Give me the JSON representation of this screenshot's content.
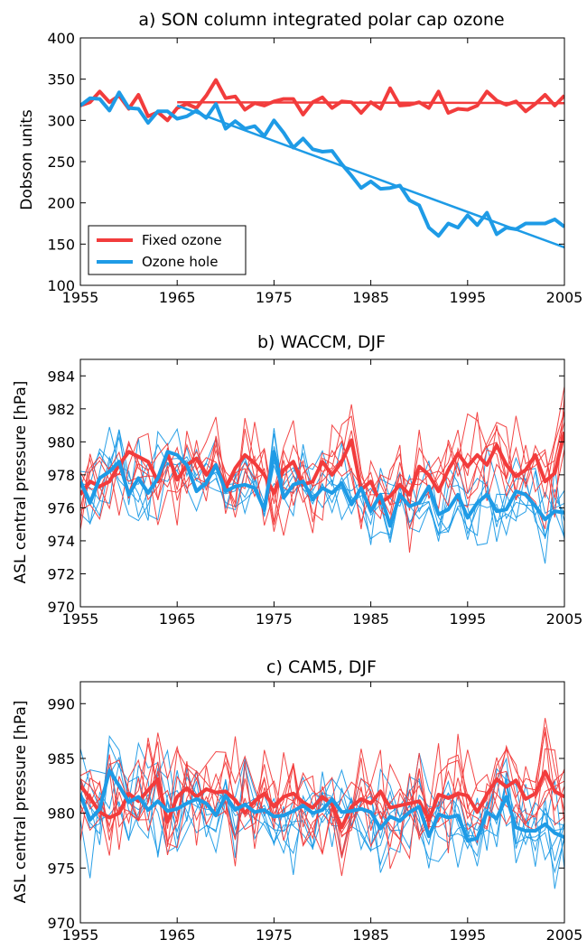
{
  "figure": {
    "panels": [
      {
        "title": "a) SON column integrated polar cap ozone",
        "ylabel": "Dobson units"
      },
      {
        "title": "b) WACCM, DJF",
        "ylabel": "ASL central pressure [hPa]"
      },
      {
        "title": "c) CAM5, DJF",
        "ylabel": "ASL central pressure [hPa]"
      }
    ]
  },
  "colors": {
    "fixed": "#f23c3c",
    "hole": "#1e9be6"
  },
  "chart_data": [
    {
      "type": "line",
      "title": "a) SON column integrated polar cap ozone",
      "xlabel": "",
      "ylabel": "Dobson units",
      "xlim": [
        1955,
        2005
      ],
      "ylim": [
        100,
        400
      ],
      "xticks": [
        1955,
        1965,
        1975,
        1985,
        1995,
        2005
      ],
      "yticks": [
        100,
        150,
        200,
        250,
        300,
        350,
        400
      ],
      "legend": {
        "placement": "lower-left",
        "entries": [
          "Fixed ozone",
          "Ozone hole"
        ]
      },
      "series": [
        {
          "name": "Fixed ozone",
          "color": "#f23c3c",
          "x": [
            1955,
            1956,
            1957,
            1958,
            1959,
            1960,
            1961,
            1962,
            1963,
            1964,
            1965,
            1966,
            1967,
            1968,
            1969,
            1970,
            1971,
            1972,
            1973,
            1974,
            1975,
            1976,
            1977,
            1978,
            1979,
            1980,
            1981,
            1982,
            1983,
            1984,
            1985,
            1986,
            1987,
            1988,
            1989,
            1990,
            1991,
            1992,
            1993,
            1994,
            1995,
            1996,
            1997,
            1998,
            1999,
            2000,
            2001,
            2002,
            2003,
            2004,
            2005
          ],
          "y": [
            318,
            322,
            335,
            322,
            330,
            314,
            331,
            305,
            310,
            300,
            315,
            320,
            315,
            330,
            349,
            327,
            329,
            313,
            321,
            318,
            323,
            326,
            326,
            307,
            322,
            328,
            315,
            323,
            322,
            309,
            322,
            314,
            339,
            318,
            319,
            322,
            315,
            335,
            309,
            314,
            313,
            318,
            335,
            324,
            319,
            323,
            311,
            320,
            331,
            318,
            330
          ]
        },
        {
          "name": "Fixed ozone trend",
          "color": "#f23c3c",
          "trend": true,
          "x": [
            1965,
            2005
          ],
          "y": [
            322,
            321
          ]
        },
        {
          "name": "Ozone hole",
          "color": "#1e9be6",
          "x": [
            1955,
            1956,
            1957,
            1958,
            1959,
            1960,
            1961,
            1962,
            1963,
            1964,
            1965,
            1966,
            1967,
            1968,
            1969,
            1970,
            1971,
            1972,
            1973,
            1974,
            1975,
            1976,
            1977,
            1978,
            1979,
            1980,
            1981,
            1982,
            1983,
            1984,
            1985,
            1986,
            1987,
            1988,
            1989,
            1990,
            1991,
            1992,
            1993,
            1994,
            1995,
            1996,
            1997,
            1998,
            1999,
            2000,
            2001,
            2002,
            2003,
            2004,
            2005
          ],
          "y": [
            318,
            327,
            326,
            312,
            334,
            315,
            314,
            297,
            311,
            311,
            302,
            305,
            312,
            303,
            320,
            290,
            299,
            290,
            293,
            281,
            300,
            285,
            267,
            278,
            265,
            262,
            263,
            247,
            233,
            218,
            226,
            217,
            218,
            221,
            203,
            197,
            170,
            160,
            175,
            170,
            185,
            173,
            188,
            162,
            170,
            168,
            175,
            175,
            175,
            180,
            171
          ]
        },
        {
          "name": "Ozone hole trend",
          "color": "#1e9be6",
          "trend": true,
          "x": [
            1965,
            2005
          ],
          "y": [
            318,
            146
          ]
        }
      ]
    },
    {
      "type": "line",
      "title": "b) WACCM, DJF",
      "xlabel": "",
      "ylabel": "ASL central pressure [hPa]",
      "xlim": [
        1955,
        2005
      ],
      "ylim": [
        970,
        985
      ],
      "xticks": [
        1955,
        1965,
        1975,
        1985,
        1995,
        2005
      ],
      "yticks": [
        970,
        972,
        974,
        976,
        978,
        980,
        982,
        984
      ],
      "ensemble": {
        "members_per_group": 6,
        "seed_fixed": 11,
        "seed_hole": 29,
        "spread_fixed": 2.0,
        "spread_hole": 1.7
      },
      "series": [
        {
          "name": "Fixed ozone ensemble mean",
          "color": "#f23c3c",
          "x_start": 1955,
          "y": [
            976.8,
            977.6,
            977.3,
            977.6,
            978.6,
            979.4,
            979.1,
            978.8,
            977.6,
            979.3,
            977.7,
            978.6,
            979.0,
            978.0,
            978.6,
            977.2,
            978.4,
            979.2,
            978.7,
            978.0,
            976.9,
            978.3,
            978.8,
            977.4,
            977.6,
            978.8,
            978.0,
            978.8,
            980.1,
            977.1,
            977.6,
            976.3,
            976.7,
            977.4,
            976.8,
            978.5,
            978.0,
            977.0,
            978.3,
            979.3,
            978.5,
            979.2,
            978.6,
            979.8,
            978.6,
            977.9,
            978.3,
            979.2,
            977.6,
            978.1,
            980.6
          ]
        },
        {
          "name": "Ozone hole ensemble mean",
          "color": "#1e9be6",
          "x_start": 1955,
          "y": [
            977.6,
            976.3,
            977.8,
            978.2,
            978.8,
            976.8,
            977.8,
            976.9,
            977.8,
            979.4,
            979.2,
            978.6,
            977.0,
            977.5,
            978.6,
            977.0,
            977.3,
            977.4,
            977.2,
            975.9,
            979.4,
            976.6,
            977.4,
            977.6,
            976.5,
            977.2,
            976.9,
            977.5,
            976.2,
            977.2,
            975.8,
            976.8,
            974.9,
            976.8,
            976.1,
            976.3,
            977.3,
            975.6,
            975.9,
            976.8,
            975.4,
            976.3,
            976.8,
            975.8,
            975.9,
            977.0,
            976.8,
            976.1,
            975.3,
            975.8,
            975.7
          ]
        }
      ]
    },
    {
      "type": "line",
      "title": "c) CAM5, DJF",
      "xlabel": "",
      "ylabel": "ASL central pressure [hPa]",
      "xlim": [
        1955,
        2005
      ],
      "ylim": [
        970,
        992
      ],
      "xticks": [
        1955,
        1965,
        1975,
        1985,
        1995,
        2005
      ],
      "yticks": [
        970,
        975,
        980,
        985,
        990
      ],
      "ensemble": {
        "members_per_group": 7,
        "seed_fixed": 53,
        "seed_hole": 71,
        "spread_fixed": 3.3,
        "spread_hole": 3.0
      },
      "series": [
        {
          "name": "Fixed ozone ensemble mean",
          "color": "#f23c3c",
          "x_start": 1955,
          "y": [
            982.5,
            981.4,
            980.1,
            979.6,
            980.0,
            981.8,
            981.1,
            982.1,
            983.1,
            979.2,
            981.5,
            982.3,
            981.5,
            982.2,
            981.9,
            982.0,
            981.2,
            980.0,
            981.1,
            981.8,
            980.6,
            981.5,
            981.8,
            981.0,
            980.5,
            981.5,
            980.8,
            978.7,
            980.6,
            981.3,
            980.9,
            982.0,
            980.5,
            980.7,
            980.9,
            981.1,
            979.4,
            981.7,
            981.4,
            981.8,
            981.6,
            980.1,
            981.7,
            983.1,
            982.4,
            983.0,
            981.3,
            981.8,
            983.8,
            982.0,
            981.5
          ]
        },
        {
          "name": "Ozone hole ensemble mean",
          "color": "#1e9be6",
          "x_start": 1955,
          "y": [
            981.7,
            979.4,
            980.4,
            983.9,
            982.5,
            981.0,
            981.5,
            980.3,
            981.1,
            980.2,
            980.4,
            980.9,
            981.3,
            980.9,
            979.8,
            981.6,
            980.3,
            980.8,
            980.1,
            980.3,
            979.7,
            979.8,
            980.2,
            980.7,
            980.0,
            980.3,
            981.3,
            980.1,
            980.2,
            980.4,
            980.1,
            978.6,
            979.7,
            979.3,
            980.1,
            980.6,
            977.9,
            979.9,
            979.6,
            979.8,
            977.5,
            977.7,
            980.1,
            979.5,
            981.5,
            978.7,
            978.4,
            978.4,
            979.0,
            978.2,
            977.8
          ]
        }
      ]
    }
  ]
}
